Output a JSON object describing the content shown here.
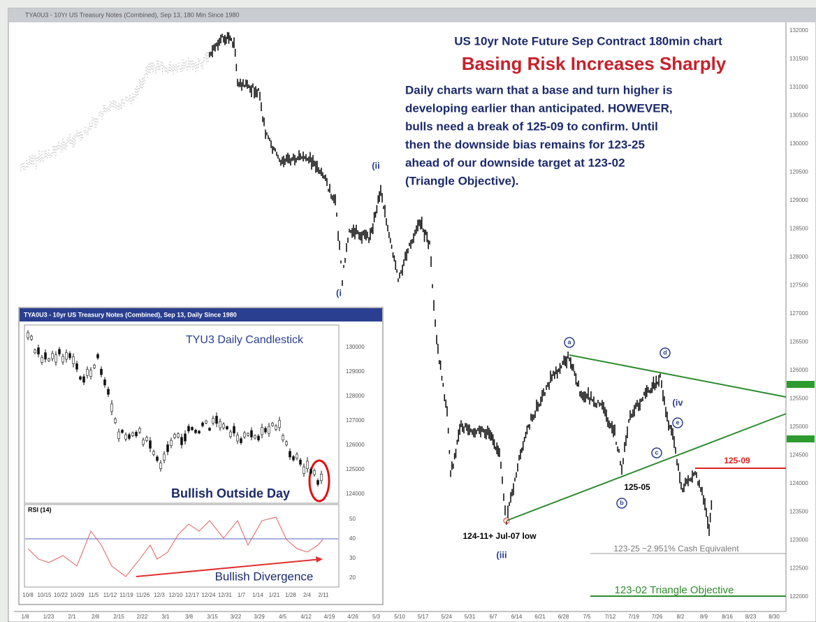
{
  "window": {
    "title": "TYA0U3 - 10Yr US Treasury Notes (Combined), Sep 13, 180 Min Since 1980"
  },
  "headline": {
    "subtitle": "US 10yr Note Future Sep Contract 180min chart",
    "title": "Basing Risk Increases Sharply",
    "body": [
      "Daily charts warn that a base and turn higher is",
      "developing earlier than anticipated. HOWEVER,",
      "bulls need a break of 125-09 to confirm. Until",
      "then the downside bias remains for 123-25",
      "ahead of our downside target at 123-02",
      "(Triangle Objective)."
    ]
  },
  "waves": [
    "(i",
    "(ii",
    "(iii",
    "(iv",
    "a",
    "b",
    "c",
    "d",
    "e"
  ],
  "annotations": {
    "low": "124-11+ Jul-07 low",
    "b_level": "125-05",
    "break_level": "125-09",
    "cash": "123-25 ~2.951% Cash Equivalent",
    "objective": "123-02 Triangle Objective"
  },
  "axis": {
    "right": [
      "132000",
      "131500",
      "131000",
      "130500",
      "130000",
      "129500",
      "129000",
      "128500",
      "128000",
      "127500",
      "127000",
      "126500",
      "126000",
      "125500",
      "125000",
      "124500",
      "124000",
      "123500",
      "123000",
      "122500",
      "122000"
    ],
    "bottom": [
      "1/8",
      "1/23",
      "2/1",
      "2/8",
      "2/15",
      "2/22",
      "3/1",
      "3/8",
      "3/15",
      "3/22",
      "3/29",
      "4/5",
      "4/12",
      "4/19",
      "4/26",
      "5/3",
      "5/10",
      "5/17",
      "5/24",
      "5/31",
      "6/7",
      "6/14",
      "6/21",
      "6/28",
      "7/5",
      "7/12",
      "7/19",
      "7/26",
      "8/2",
      "8/9",
      "8/16",
      "8/23",
      "8/30"
    ]
  },
  "inset": {
    "title": "TYA0U3 - 10yr US Treasury Notes (Combined), Sep 13, Daily Since 1980",
    "heading": "TYU3 Daily Candlestick",
    "note": "Bullish Outside Day",
    "rsi_label": "RSI (14)",
    "divergence": "Bullish Divergence",
    "yticks": [
      "130000",
      "129000",
      "128000",
      "127000",
      "126000",
      "125000",
      "124000"
    ],
    "rsi_ticks": [
      "50",
      "40",
      "30",
      "20"
    ],
    "dates": [
      "10/8",
      "10/15",
      "10/22",
      "10/29",
      "11/5",
      "11/12",
      "11/19",
      "11/26",
      "12/3",
      "12/10",
      "12/17",
      "12/24",
      "12/31",
      "1/7",
      "1/14",
      "1/21",
      "1/28",
      "2/4",
      "2/11"
    ]
  }
}
